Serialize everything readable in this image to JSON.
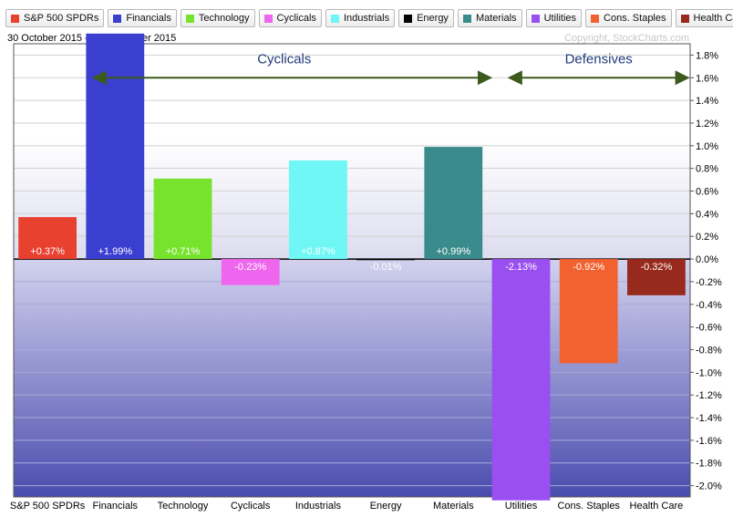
{
  "header": {
    "date_range": "30 October 2015 - 30 November 2015",
    "copyright": "Copyright, StockCharts.com"
  },
  "legend": [
    {
      "label": "S&P 500 SPDRs",
      "color": "#e8412f"
    },
    {
      "label": "Financials",
      "color": "#3a3fd0"
    },
    {
      "label": "Technology",
      "color": "#77e32c"
    },
    {
      "label": "Cyclicals",
      "color": "#ee66ee"
    },
    {
      "label": "Industrials",
      "color": "#6ff7f5"
    },
    {
      "label": "Energy",
      "color": "#000000"
    },
    {
      "label": "Materials",
      "color": "#3a8c8c"
    },
    {
      "label": "Utilities",
      "color": "#9a4ff0"
    },
    {
      "label": "Cons. Staples",
      "color": "#f26230"
    },
    {
      "label": "Health Care",
      "color": "#972a1c"
    }
  ],
  "annotations": {
    "cyclicals_label": "Cyclicals",
    "defensives_label": "Defensives",
    "arrow_color": "#3d5a1e"
  },
  "chart_data": {
    "type": "bar",
    "categories": [
      "S&P 500 SPDRs",
      "Financials",
      "Technology",
      "Cyclicals",
      "Industrials",
      "Energy",
      "Materials",
      "Utilities",
      "Cons. Staples",
      "Health Care"
    ],
    "values": [
      0.37,
      1.99,
      0.71,
      -0.23,
      0.87,
      -0.01,
      0.99,
      -2.13,
      -0.92,
      -0.32
    ],
    "value_labels": [
      "+0.37%",
      "+1.99%",
      "+0.71%",
      "-0.23%",
      "+0.87%",
      "-0.01%",
      "+0.99%",
      "-2.13%",
      "-0.92%",
      "-0.32%"
    ],
    "colors": [
      "#e8412f",
      "#3a3fd0",
      "#77e32c",
      "#ee66ee",
      "#6ff7f5",
      "#000000",
      "#3a8c8c",
      "#9a4ff0",
      "#f26230",
      "#972a1c"
    ],
    "ylim": [
      -2.1,
      1.9
    ],
    "y_ticks": [
      1.8,
      1.6,
      1.4,
      1.2,
      1.0,
      0.8,
      0.6,
      0.4,
      0.2,
      0.0,
      -0.2,
      -0.4,
      -0.6,
      -0.8,
      -1.0,
      -1.2,
      -1.4,
      -1.6,
      -1.8,
      -2.0
    ],
    "y_tick_labels": [
      "1.8%",
      "1.6%",
      "1.4%",
      "1.2%",
      "1.0%",
      "0.8%",
      "0.6%",
      "0.4%",
      "0.2%",
      "0.0%",
      "-0.2%",
      "-0.4%",
      "-0.6%",
      "-0.8%",
      "-1.0%",
      "-1.2%",
      "-1.4%",
      "-1.6%",
      "-1.8%",
      "-2.0%"
    ],
    "grid": true,
    "legend_position": "top"
  }
}
